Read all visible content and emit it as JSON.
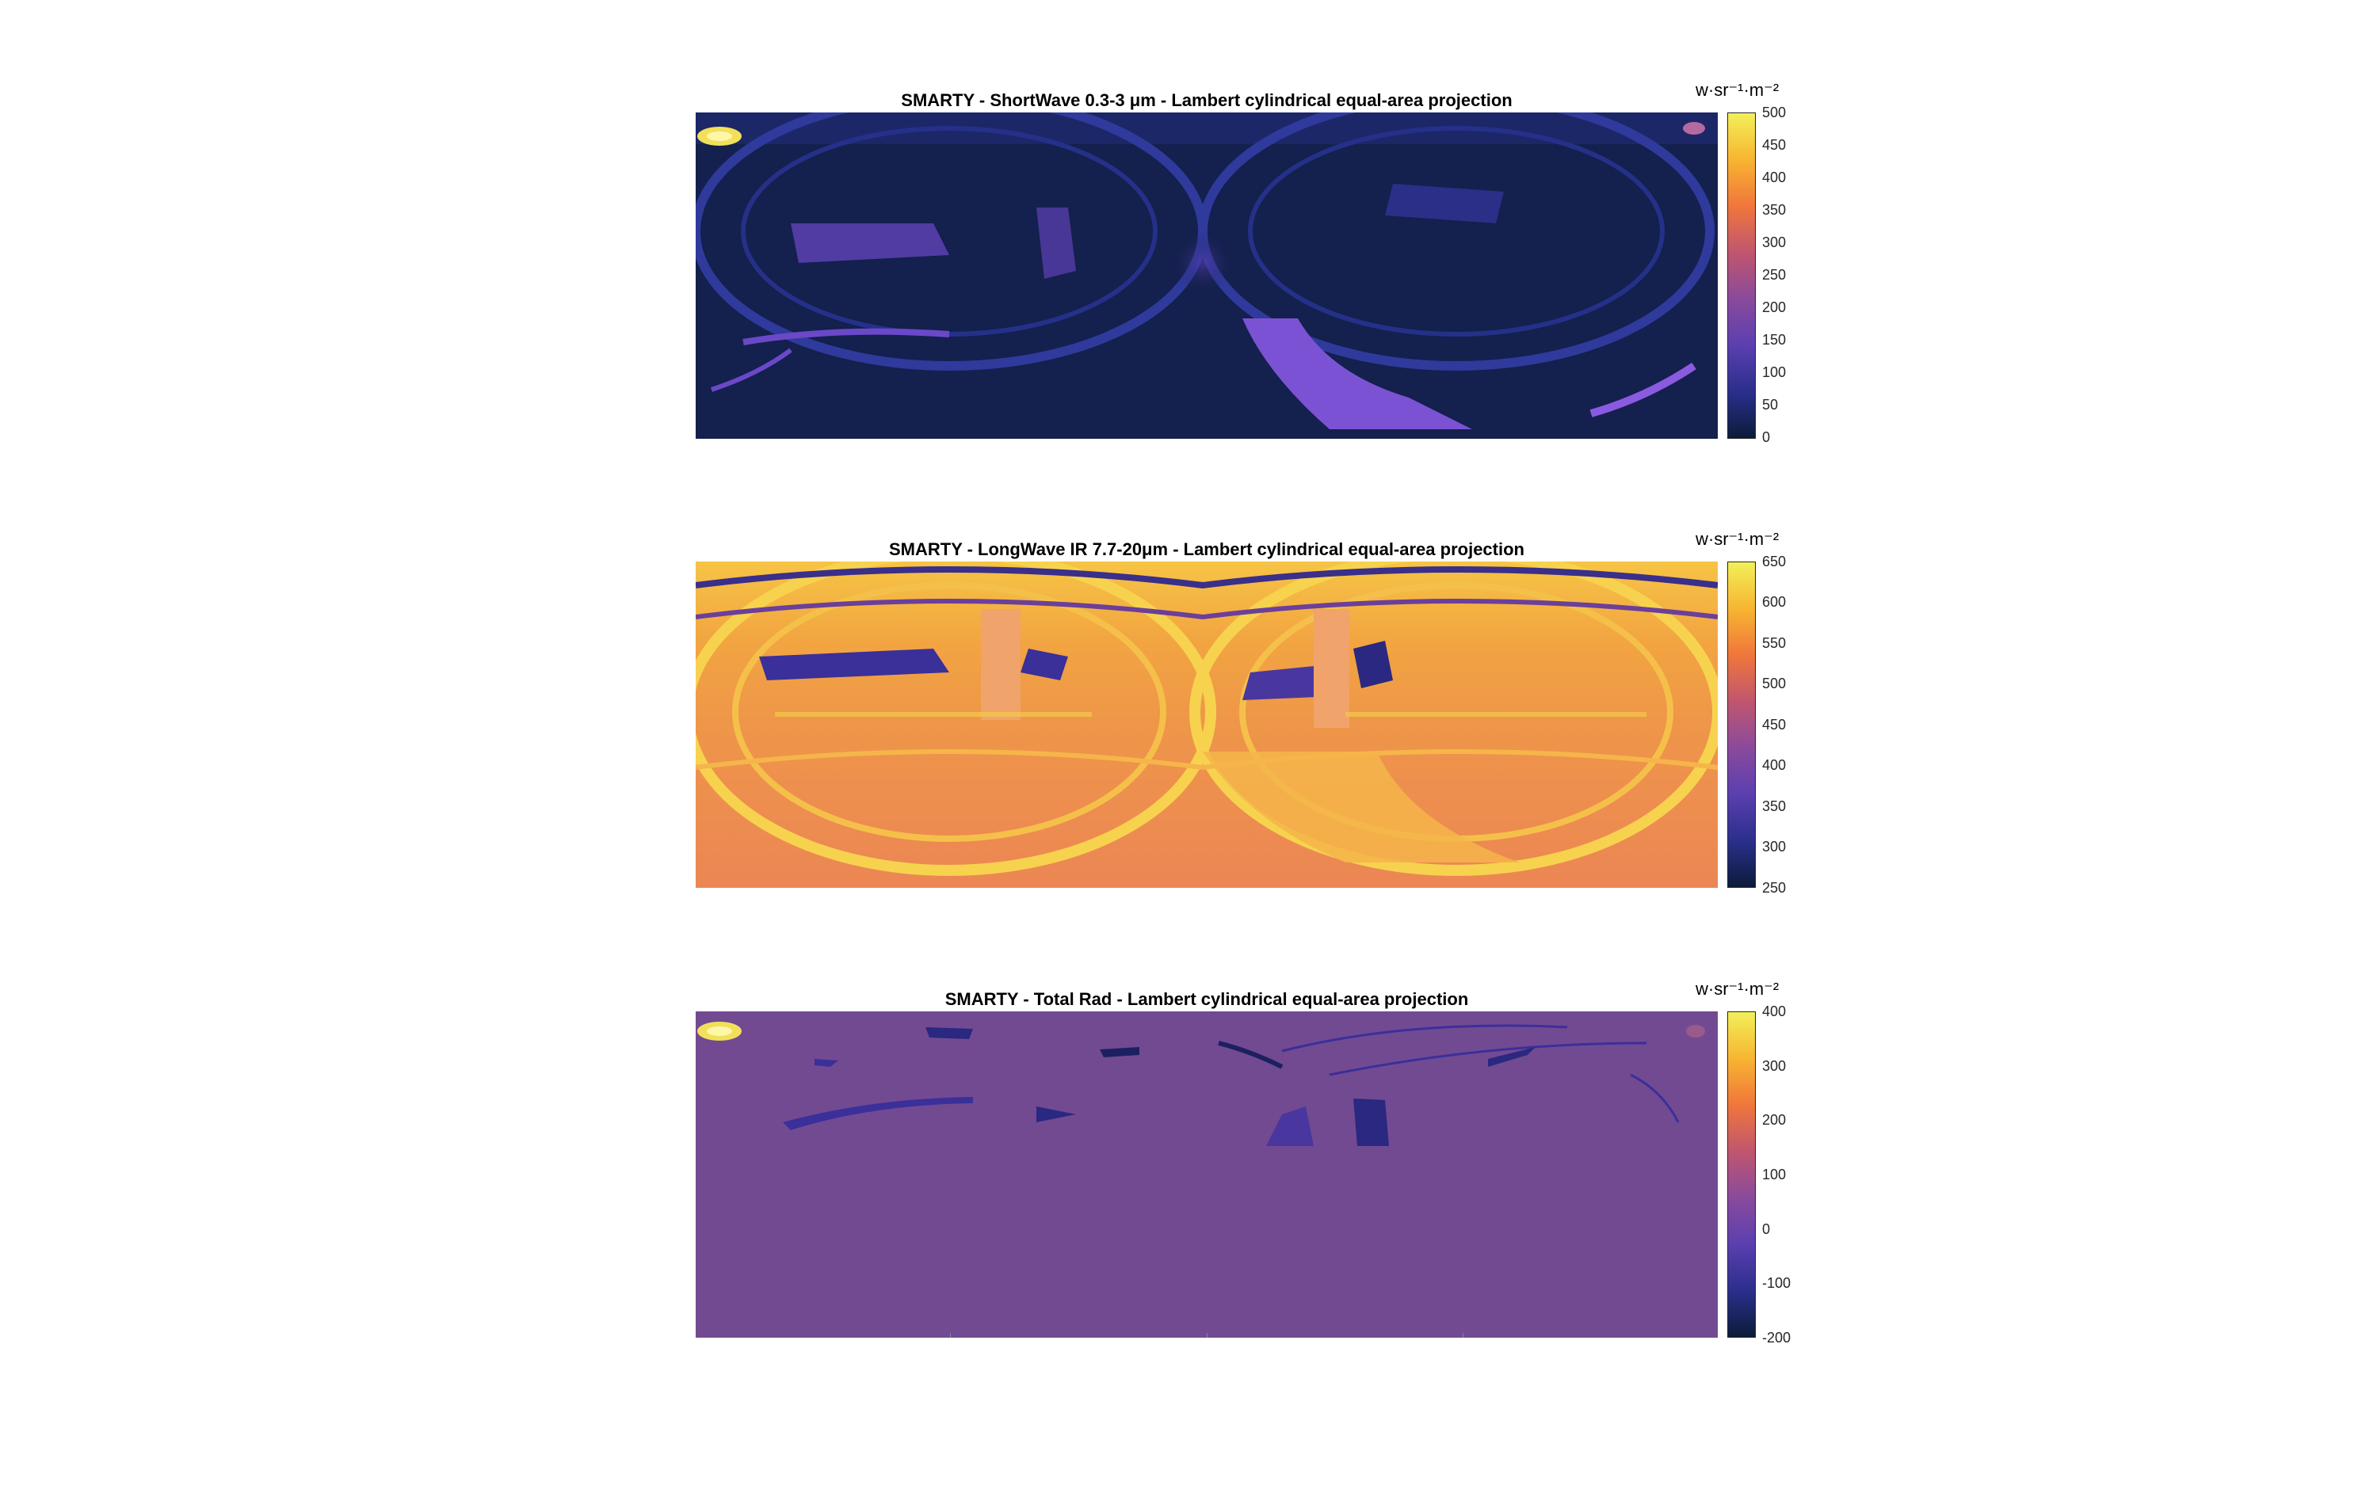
{
  "chart_data": [
    {
      "type": "heatmap",
      "title": "SMARTY - ShortWave 0.3-3 μm - Lambert cylindrical equal-area projection",
      "colorbar_label": "w·sr⁻¹·m⁻²",
      "colorbar_ticks": [
        "500",
        "450",
        "400",
        "350",
        "300",
        "250",
        "200",
        "150",
        "100",
        "50",
        "0"
      ],
      "clim": [
        0,
        500
      ],
      "colormap": [
        "#0c1b3a",
        "#2b2f8c",
        "#5b3fb0",
        "#8a4a9c",
        "#c0566e",
        "#f0763c",
        "#f7b531",
        "#f2f05a"
      ]
    },
    {
      "type": "heatmap",
      "title": "SMARTY - LongWave IR 7.7-20μm - Lambert cylindrical equal-area projection",
      "colorbar_label": "w·sr⁻¹·m⁻²",
      "colorbar_ticks": [
        "650",
        "600",
        "550",
        "500",
        "450",
        "400",
        "350",
        "300",
        "250"
      ],
      "clim": [
        250,
        650
      ],
      "colormap": [
        "#0c1b3a",
        "#2b2f8c",
        "#5b3fb0",
        "#8a4a9c",
        "#c0566e",
        "#f0763c",
        "#f7b531",
        "#f2f05a"
      ]
    },
    {
      "type": "heatmap",
      "title": "SMARTY - Total Rad - Lambert cylindrical equal-area projection",
      "colorbar_label": "w·sr⁻¹·m⁻²",
      "colorbar_ticks": [
        "400",
        "300",
        "200",
        "100",
        "0",
        "-100",
        "-200"
      ],
      "clim": [
        -200,
        400
      ],
      "colormap": [
        "#0c1b3a",
        "#2b2f8c",
        "#5b3fb0",
        "#8a4a9c",
        "#c0566e",
        "#f0763c",
        "#f7b531",
        "#f2f05a"
      ]
    }
  ]
}
